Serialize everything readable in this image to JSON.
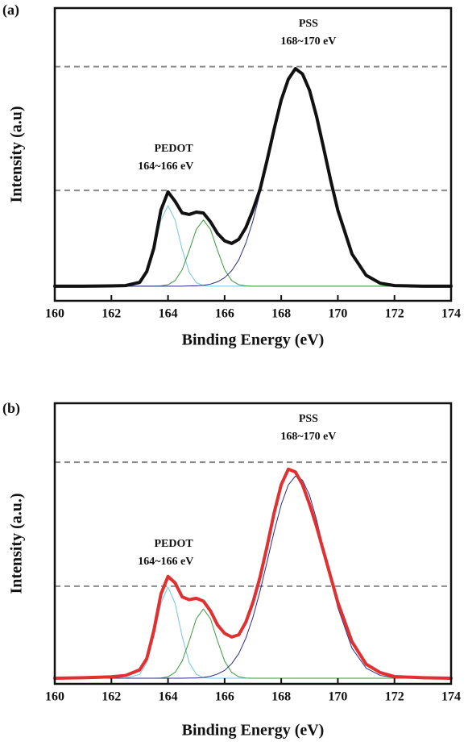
{
  "chart_data": [
    {
      "type": "line",
      "panel_label": "(a)",
      "x_label": "Binding Energy (eV)",
      "y_label": "Intensity (a.u)",
      "annotations": [
        "PSS",
        "168~170 eV",
        "PEDOT",
        "164~166 eV"
      ],
      "x": [
        160,
        161,
        162,
        162.5,
        163,
        163.25,
        163.5,
        163.75,
        164,
        164.25,
        164.5,
        164.75,
        165,
        165.25,
        165.5,
        165.75,
        166,
        166.25,
        166.5,
        166.75,
        167,
        167.25,
        167.5,
        167.75,
        168,
        168.25,
        168.5,
        168.75,
        169,
        169.25,
        169.5,
        169.75,
        170,
        170.5,
        171,
        171.5,
        172,
        173,
        174
      ],
      "xlim": [
        160,
        174
      ],
      "xticks": [
        160,
        162,
        164,
        166,
        168,
        170,
        172,
        174
      ],
      "ylim": [
        0,
        100
      ],
      "reference_lines": [
        80,
        37.7
      ],
      "reference_color": "#8a8a8a",
      "series": [
        {
          "color": "#6ec6e0",
          "width": 1,
          "values": [
            5,
            5,
            5,
            5,
            6.2,
            9.7,
            17.6,
            27.6,
            32.5,
            27.6,
            17.6,
            9.7,
            6.2,
            5.2,
            5,
            5,
            5,
            5,
            5,
            5,
            5,
            5,
            5,
            5,
            5,
            5,
            5,
            5,
            5,
            5,
            5,
            5,
            5,
            5,
            5,
            5,
            5,
            5,
            5
          ]
        },
        {
          "color": "#3a9a3a",
          "width": 1,
          "values": [
            5,
            5,
            5,
            5,
            5,
            5,
            5,
            5.1,
            5.5,
            6.9,
            10.6,
            17.2,
            24.4,
            27.6,
            24.4,
            17.2,
            10.6,
            6.9,
            5.5,
            5.1,
            5,
            5,
            5,
            5,
            5,
            5,
            5,
            5,
            5,
            5,
            5,
            5,
            5,
            5,
            5,
            5,
            5,
            5,
            5
          ]
        },
        {
          "color": "#2a2a8c",
          "width": 1,
          "values": [
            5,
            5,
            5,
            5,
            5,
            5,
            5,
            5,
            5,
            5,
            5,
            5.1,
            5.1,
            5.3,
            5.7,
            6.5,
            7.9,
            10.3,
            14.0,
            19.7,
            27.3,
            36.8,
            47.6,
            58.7,
            68.6,
            75.7,
            78.9,
            77.5,
            71.9,
            62.9,
            52.1,
            41.0,
            30.9,
            16.0,
            8.7,
            6.0,
            5.2,
            5,
            5
          ]
        },
        {
          "color": "#111111",
          "width": 4,
          "values": [
            5,
            5,
            5.1,
            5.2,
            6.3,
            10,
            18,
            31,
            37.2,
            34,
            30,
            29.5,
            30.3,
            30,
            27,
            23,
            20.5,
            19.6,
            21,
            25,
            31,
            38,
            48,
            58.7,
            68.6,
            75.7,
            79.3,
            77.5,
            71.9,
            62.9,
            52.1,
            41.0,
            30.9,
            16.0,
            8.7,
            6.0,
            5.2,
            5,
            5
          ]
        }
      ]
    },
    {
      "type": "line",
      "panel_label": "(b)",
      "x_label": "Binding Energy (eV)",
      "y_label": "Intensity (a.u.)",
      "annotations": [
        "PSS",
        "168~170 eV",
        "PEDOT",
        "164~166 eV"
      ],
      "x": [
        160,
        161,
        162,
        162.5,
        163,
        163.25,
        163.5,
        163.75,
        164,
        164.25,
        164.5,
        164.75,
        165,
        165.25,
        165.5,
        165.75,
        166,
        166.25,
        166.5,
        166.75,
        167,
        167.25,
        167.5,
        167.75,
        168,
        168.25,
        168.5,
        168.75,
        169,
        169.25,
        169.5,
        169.75,
        170,
        170.5,
        171,
        171.5,
        172,
        173,
        174
      ],
      "xlim": [
        160,
        174
      ],
      "xticks": [
        160,
        162,
        164,
        166,
        168,
        170,
        172,
        174
      ],
      "ylim": [
        0,
        100
      ],
      "reference_lines": [
        79,
        34.8
      ],
      "reference_color": "#8a8a8a",
      "series": [
        {
          "color": "#6ec6e0",
          "width": 1,
          "values": [
            2,
            2,
            2,
            2,
            3.4,
            7.5,
            16.9,
            28.7,
            34.5,
            28.7,
            16.9,
            7.5,
            3.4,
            2.2,
            2,
            2,
            2,
            2,
            2,
            2,
            2,
            2,
            2,
            2,
            2,
            2,
            2,
            2,
            2,
            2,
            2,
            2,
            2,
            2,
            2,
            2,
            2,
            2,
            2
          ]
        },
        {
          "color": "#3a9a3a",
          "width": 1,
          "values": [
            2,
            2,
            2,
            2,
            2,
            2,
            2,
            2.1,
            2.5,
            4.1,
            8.1,
            15.3,
            23.2,
            26.7,
            23.2,
            15.3,
            8.1,
            4.1,
            2.5,
            2.1,
            2,
            2,
            2,
            2,
            2,
            2,
            2,
            2,
            2,
            2,
            2,
            2,
            2,
            2,
            2,
            2,
            2,
            2,
            2
          ]
        },
        {
          "color": "#2a2a8c",
          "width": 1,
          "values": [
            2,
            2,
            2,
            2,
            2,
            2,
            2,
            2,
            2,
            2,
            2,
            2.1,
            2.1,
            2.3,
            2.7,
            3.5,
            4.8,
            7.2,
            10.8,
            16.3,
            23.7,
            33.0,
            43.5,
            54.3,
            63.9,
            70.9,
            74.0,
            72.6,
            67.2,
            58.4,
            47.9,
            37.1,
            27.2,
            12.7,
            5.6,
            3.0,
            2.2,
            2,
            2
          ]
        },
        {
          "color": "#e03030",
          "width": 4,
          "values": [
            2,
            2.2,
            2.5,
            3,
            5,
            9,
            19,
            32,
            38.3,
            36,
            31,
            30,
            30.5,
            29.5,
            26,
            21,
            18,
            16.7,
            17.5,
            22,
            29,
            38,
            49,
            61,
            71,
            76.5,
            75.5,
            71,
            64,
            56,
            47,
            38,
            29,
            15,
            7,
            4,
            2.6,
            2.2,
            2
          ]
        }
      ]
    }
  ]
}
